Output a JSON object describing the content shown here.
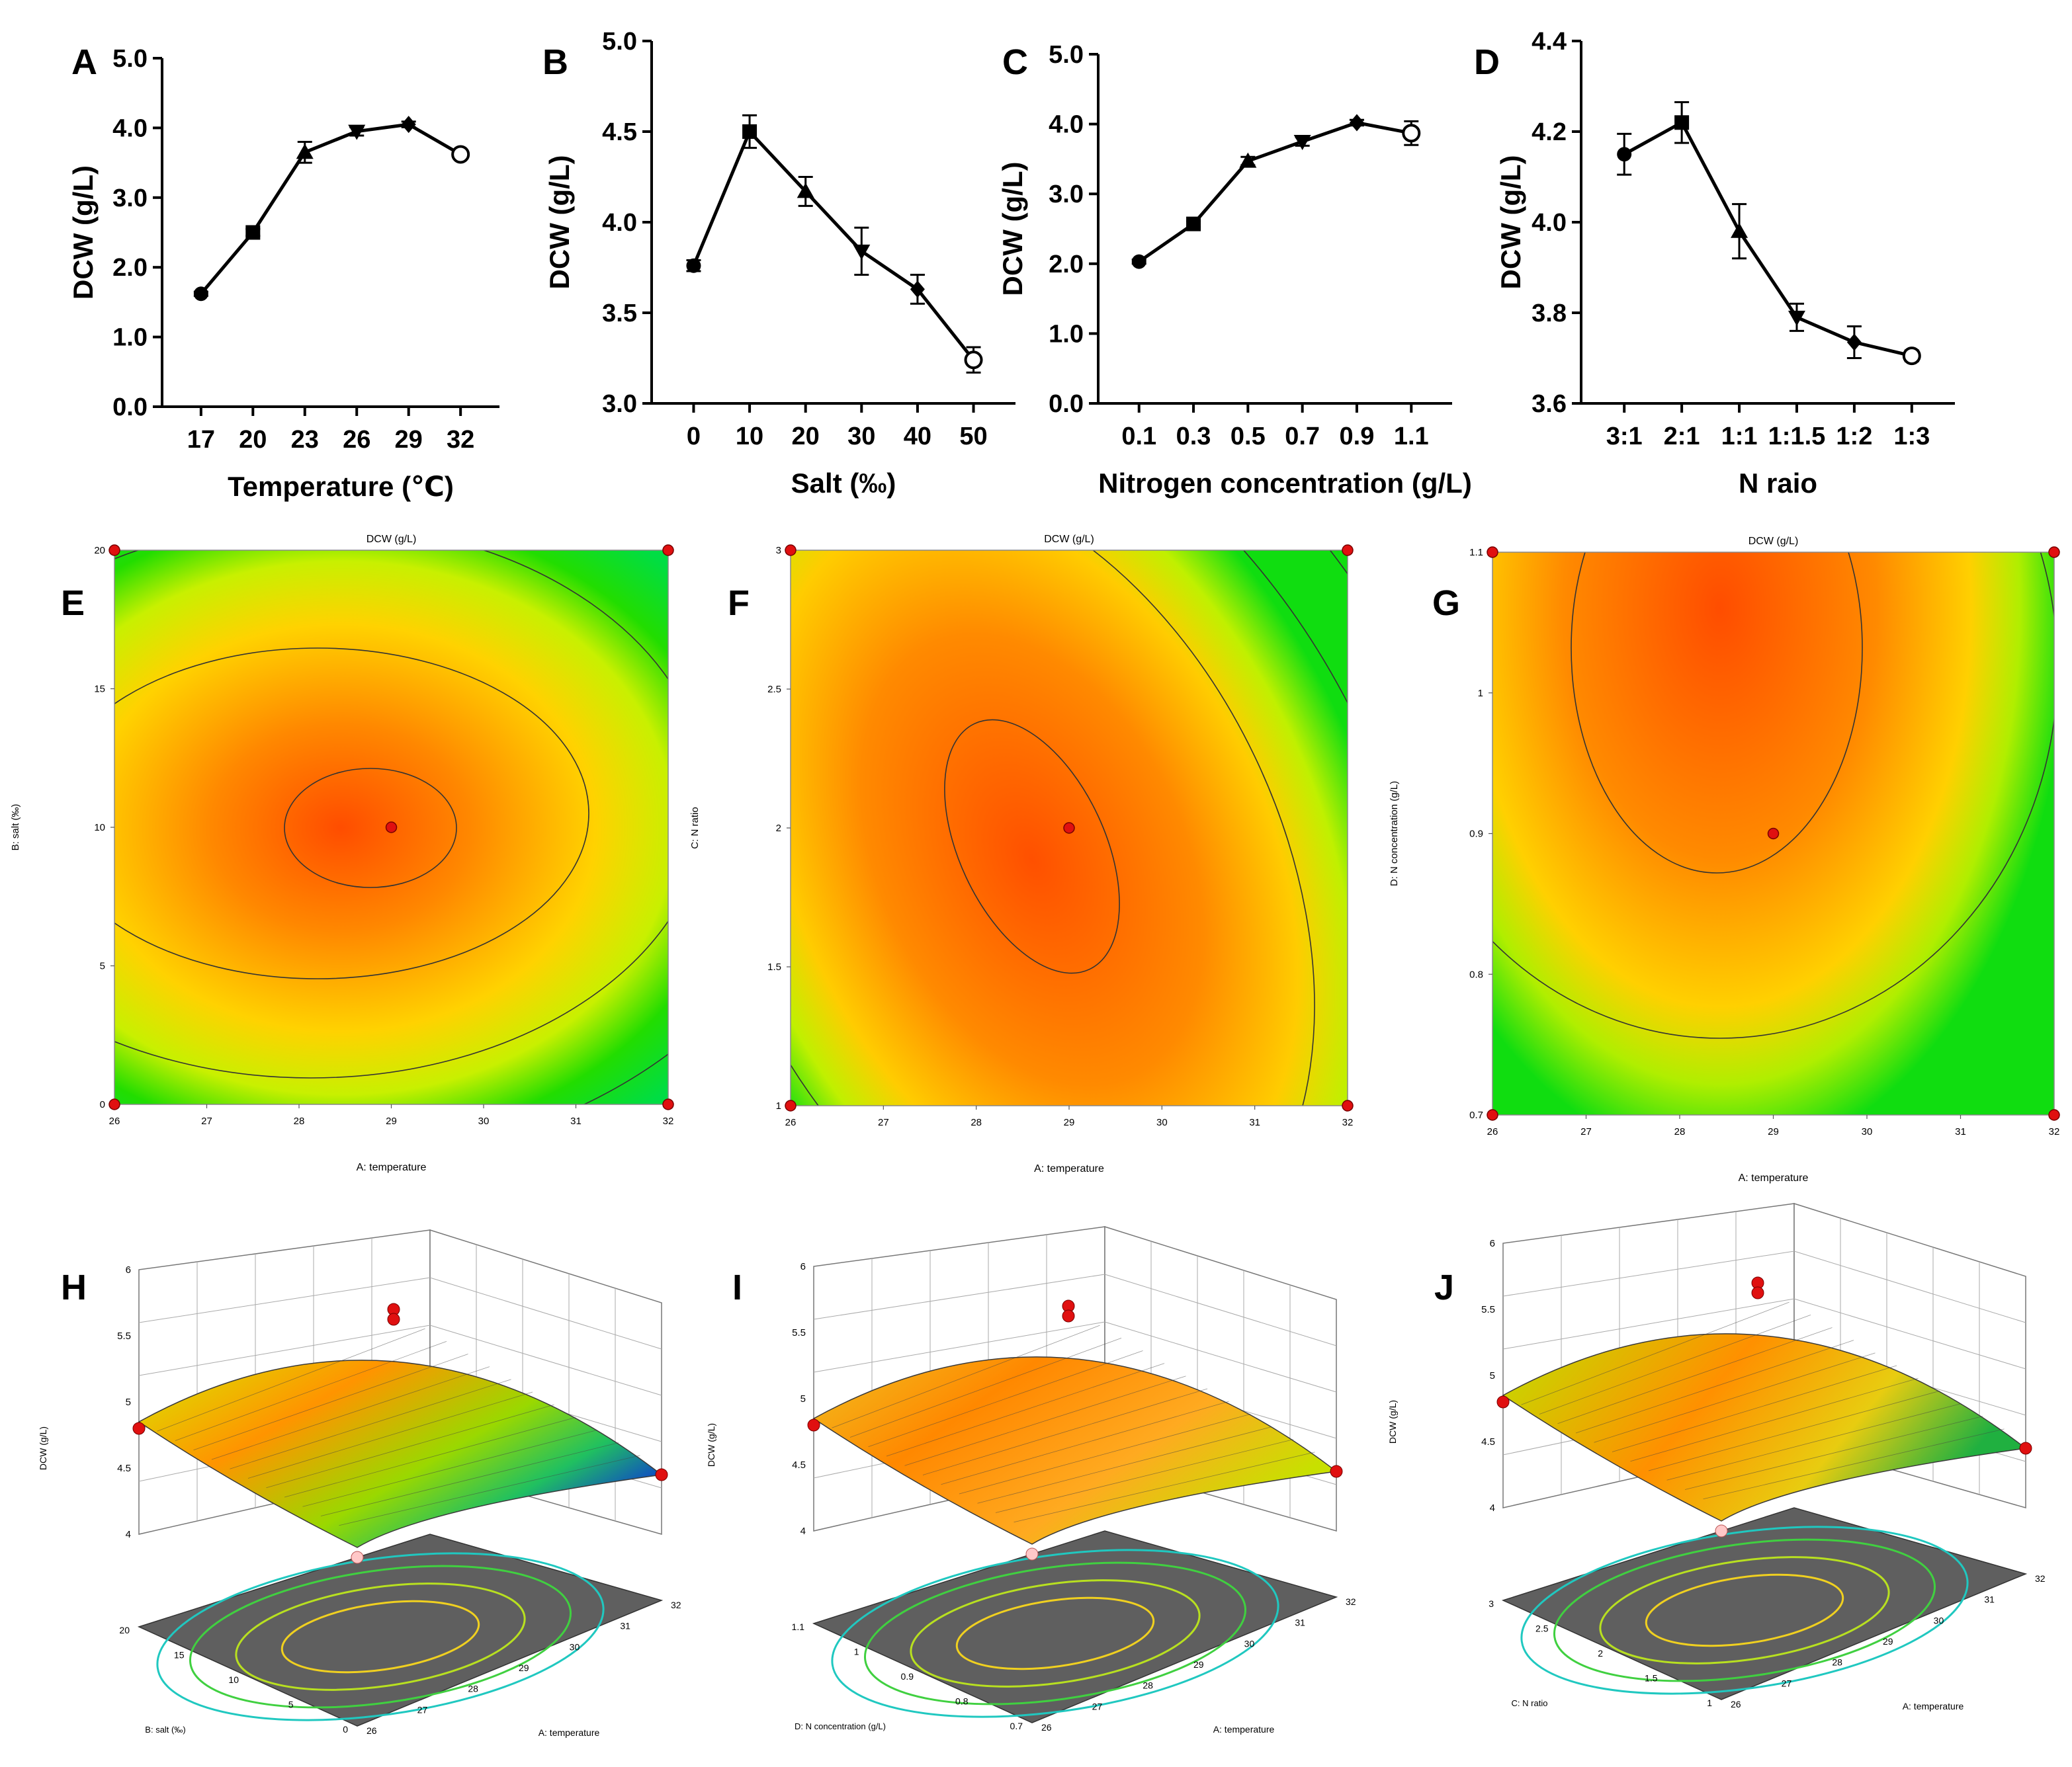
{
  "chart_data": [
    {
      "panel": "A",
      "type": "line",
      "xlabel": "Temperature (℃)",
      "ylabel": "DCW (g/L)",
      "categories": [
        "17",
        "20",
        "23",
        "26",
        "29",
        "32"
      ],
      "values": [
        1.62,
        2.5,
        3.65,
        3.95,
        4.05,
        3.62
      ],
      "errors": [
        0.03,
        0.05,
        0.15,
        0.06,
        0.04,
        0.05
      ],
      "markers": [
        "circle",
        "square",
        "triangle-up",
        "triangle-down",
        "diamond",
        "circle-open"
      ],
      "ylim": [
        0,
        5
      ],
      "yticks": [
        "0.0",
        "1.0",
        "2.0",
        "3.0",
        "4.0",
        "5.0"
      ]
    },
    {
      "panel": "B",
      "type": "line",
      "xlabel": "Salt (‰)",
      "ylabel": "DCW (g/L)",
      "categories": [
        "0",
        "10",
        "20",
        "30",
        "40",
        "50"
      ],
      "values": [
        3.76,
        4.5,
        4.17,
        3.84,
        3.63,
        3.24
      ],
      "errors": [
        0.03,
        0.09,
        0.08,
        0.13,
        0.08,
        0.07
      ],
      "markers": [
        "circle",
        "square",
        "triangle-up",
        "triangle-down",
        "diamond",
        "circle-open"
      ],
      "ylim": [
        3,
        5
      ],
      "yticks": [
        "3.0",
        "3.5",
        "4.0",
        "4.5",
        "5.0"
      ]
    },
    {
      "panel": "C",
      "type": "line",
      "xlabel": "Nitrogen concentration  (g/L)",
      "ylabel": "DCW (g/L)",
      "categories": [
        "0.1",
        "0.3",
        "0.5",
        "0.7",
        "0.9",
        "1.1"
      ],
      "values": [
        2.03,
        2.57,
        3.47,
        3.75,
        4.02,
        3.87
      ],
      "errors": [
        0.03,
        0.04,
        0.06,
        0.06,
        0.04,
        0.17
      ],
      "markers": [
        "circle",
        "square",
        "triangle-up",
        "triangle-down",
        "diamond",
        "circle-open"
      ],
      "ylim": [
        0,
        5
      ],
      "yticks": [
        "0.0",
        "1.0",
        "2.0",
        "3.0",
        "4.0",
        "5.0"
      ]
    },
    {
      "panel": "D",
      "type": "line",
      "xlabel": "N raio",
      "ylabel": "DCW (g/L)",
      "categories": [
        "3:1",
        "2:1",
        "1:1",
        "1:1.5",
        "1:2",
        "1:3"
      ],
      "values": [
        4.15,
        4.22,
        3.98,
        3.79,
        3.735,
        3.705
      ],
      "errors": [
        0.045,
        0.045,
        0.06,
        0.03,
        0.035,
        0.012
      ],
      "markers": [
        "circle",
        "square",
        "triangle-up",
        "triangle-down",
        "diamond",
        "circle-open"
      ],
      "ylim": [
        3.6,
        4.4
      ],
      "yticks": [
        "3.6",
        "3.8",
        "4.0",
        "4.2",
        "4.4"
      ]
    },
    {
      "panel": "E",
      "type": "heatmap",
      "title": "DCW (g/L)",
      "xlabel": "A: temperature",
      "ylabel": "B: salt (‰)",
      "xlim": [
        26,
        32
      ],
      "ylim": [
        0,
        20
      ],
      "xticks": [
        "26",
        "27",
        "28",
        "29",
        "30",
        "31",
        "32"
      ],
      "yticks": [
        "0",
        "5",
        "10",
        "15",
        "20"
      ],
      "center_point": [
        29,
        10
      ]
    },
    {
      "panel": "F",
      "type": "heatmap",
      "title": "DCW (g/L)",
      "xlabel": "A: temperature",
      "ylabel": "C: N ratio",
      "xlim": [
        26,
        32
      ],
      "ylim": [
        1,
        3
      ],
      "xticks": [
        "26",
        "27",
        "28",
        "29",
        "30",
        "31",
        "32"
      ],
      "yticks": [
        "1",
        "1.5",
        "2",
        "2.5",
        "3"
      ],
      "center_point": [
        29,
        2
      ]
    },
    {
      "panel": "G",
      "type": "heatmap",
      "title": "DCW (g/L)",
      "xlabel": "A: temperature",
      "ylabel": "D: N concentration (g/L)",
      "xlim": [
        26,
        32
      ],
      "ylim": [
        0.7,
        1.1
      ],
      "xticks": [
        "26",
        "27",
        "28",
        "29",
        "30",
        "31",
        "32"
      ],
      "yticks": [
        "0.7",
        "0.8",
        "0.9",
        "1",
        "1.1"
      ],
      "center_point": [
        29,
        0.9
      ]
    },
    {
      "panel": "H",
      "type": "surface",
      "zlabel": "DCW (g/L)",
      "xlabel": "A: temperature",
      "ylabel": "B: salt (‰)",
      "zticks": [
        "4",
        "4.5",
        "5",
        "5.5",
        "6"
      ],
      "xticks": [
        "26",
        "27",
        "28",
        "29",
        "30",
        "31",
        "32"
      ],
      "yticks": [
        "0",
        "5",
        "10",
        "15",
        "20"
      ]
    },
    {
      "panel": "I",
      "type": "surface",
      "zlabel": "DCW (g/L)",
      "xlabel": "A: temperature",
      "ylabel": "D: N concentration (g/L)",
      "zticks": [
        "4",
        "4.5",
        "5",
        "5.5",
        "6"
      ],
      "xticks": [
        "26",
        "27",
        "28",
        "29",
        "30",
        "31",
        "32"
      ],
      "yticks": [
        "0.7",
        "0.8",
        "0.9",
        "1",
        "1.1"
      ]
    },
    {
      "panel": "J",
      "type": "surface",
      "zlabel": "DCW (g/L)",
      "xlabel": "A: temperature",
      "ylabel": "C: N ratio",
      "zticks": [
        "4",
        "4.5",
        "5",
        "5.5",
        "6"
      ],
      "xticks": [
        "26",
        "27",
        "28",
        "29",
        "30",
        "31",
        "32"
      ],
      "yticks": [
        "1",
        "1.5",
        "2",
        "2.5",
        "3"
      ]
    }
  ]
}
